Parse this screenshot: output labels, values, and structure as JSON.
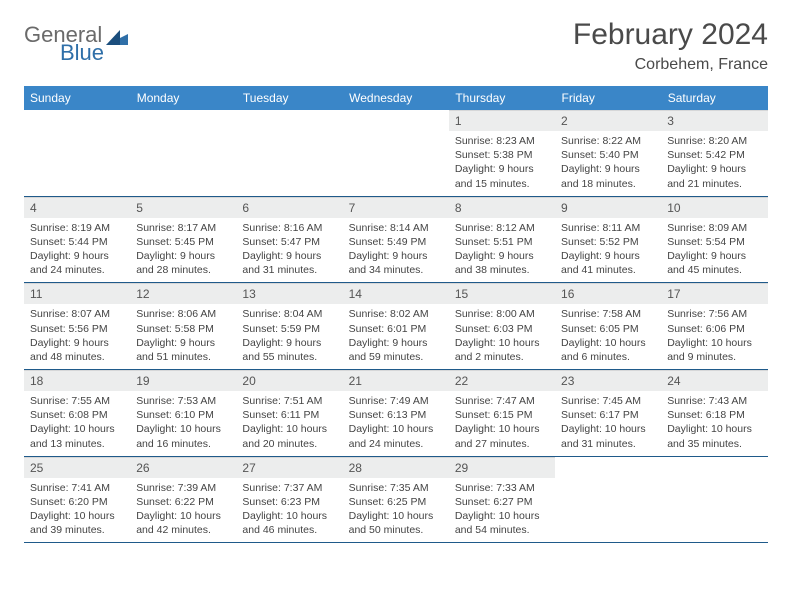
{
  "logo": {
    "general": "General",
    "blue": "Blue"
  },
  "title": "February 2024",
  "location": "Corbehem, France",
  "colors": {
    "header_bg": "#3a86c8",
    "header_text": "#ffffff",
    "daynum_bg": "#eceded",
    "row_border": "#1f5a8a",
    "logo_accent": "#2f6fa8",
    "logo_gray": "#6a6a6a"
  },
  "weekdays": [
    "Sunday",
    "Monday",
    "Tuesday",
    "Wednesday",
    "Thursday",
    "Friday",
    "Saturday"
  ],
  "weeks": [
    [
      {
        "n": "",
        "sr": "",
        "ss": "",
        "dl": ""
      },
      {
        "n": "",
        "sr": "",
        "ss": "",
        "dl": ""
      },
      {
        "n": "",
        "sr": "",
        "ss": "",
        "dl": ""
      },
      {
        "n": "",
        "sr": "",
        "ss": "",
        "dl": ""
      },
      {
        "n": "1",
        "sr": "Sunrise: 8:23 AM",
        "ss": "Sunset: 5:38 PM",
        "dl": "Daylight: 9 hours and 15 minutes."
      },
      {
        "n": "2",
        "sr": "Sunrise: 8:22 AM",
        "ss": "Sunset: 5:40 PM",
        "dl": "Daylight: 9 hours and 18 minutes."
      },
      {
        "n": "3",
        "sr": "Sunrise: 8:20 AM",
        "ss": "Sunset: 5:42 PM",
        "dl": "Daylight: 9 hours and 21 minutes."
      }
    ],
    [
      {
        "n": "4",
        "sr": "Sunrise: 8:19 AM",
        "ss": "Sunset: 5:44 PM",
        "dl": "Daylight: 9 hours and 24 minutes."
      },
      {
        "n": "5",
        "sr": "Sunrise: 8:17 AM",
        "ss": "Sunset: 5:45 PM",
        "dl": "Daylight: 9 hours and 28 minutes."
      },
      {
        "n": "6",
        "sr": "Sunrise: 8:16 AM",
        "ss": "Sunset: 5:47 PM",
        "dl": "Daylight: 9 hours and 31 minutes."
      },
      {
        "n": "7",
        "sr": "Sunrise: 8:14 AM",
        "ss": "Sunset: 5:49 PM",
        "dl": "Daylight: 9 hours and 34 minutes."
      },
      {
        "n": "8",
        "sr": "Sunrise: 8:12 AM",
        "ss": "Sunset: 5:51 PM",
        "dl": "Daylight: 9 hours and 38 minutes."
      },
      {
        "n": "9",
        "sr": "Sunrise: 8:11 AM",
        "ss": "Sunset: 5:52 PM",
        "dl": "Daylight: 9 hours and 41 minutes."
      },
      {
        "n": "10",
        "sr": "Sunrise: 8:09 AM",
        "ss": "Sunset: 5:54 PM",
        "dl": "Daylight: 9 hours and 45 minutes."
      }
    ],
    [
      {
        "n": "11",
        "sr": "Sunrise: 8:07 AM",
        "ss": "Sunset: 5:56 PM",
        "dl": "Daylight: 9 hours and 48 minutes."
      },
      {
        "n": "12",
        "sr": "Sunrise: 8:06 AM",
        "ss": "Sunset: 5:58 PM",
        "dl": "Daylight: 9 hours and 51 minutes."
      },
      {
        "n": "13",
        "sr": "Sunrise: 8:04 AM",
        "ss": "Sunset: 5:59 PM",
        "dl": "Daylight: 9 hours and 55 minutes."
      },
      {
        "n": "14",
        "sr": "Sunrise: 8:02 AM",
        "ss": "Sunset: 6:01 PM",
        "dl": "Daylight: 9 hours and 59 minutes."
      },
      {
        "n": "15",
        "sr": "Sunrise: 8:00 AM",
        "ss": "Sunset: 6:03 PM",
        "dl": "Daylight: 10 hours and 2 minutes."
      },
      {
        "n": "16",
        "sr": "Sunrise: 7:58 AM",
        "ss": "Sunset: 6:05 PM",
        "dl": "Daylight: 10 hours and 6 minutes."
      },
      {
        "n": "17",
        "sr": "Sunrise: 7:56 AM",
        "ss": "Sunset: 6:06 PM",
        "dl": "Daylight: 10 hours and 9 minutes."
      }
    ],
    [
      {
        "n": "18",
        "sr": "Sunrise: 7:55 AM",
        "ss": "Sunset: 6:08 PM",
        "dl": "Daylight: 10 hours and 13 minutes."
      },
      {
        "n": "19",
        "sr": "Sunrise: 7:53 AM",
        "ss": "Sunset: 6:10 PM",
        "dl": "Daylight: 10 hours and 16 minutes."
      },
      {
        "n": "20",
        "sr": "Sunrise: 7:51 AM",
        "ss": "Sunset: 6:11 PM",
        "dl": "Daylight: 10 hours and 20 minutes."
      },
      {
        "n": "21",
        "sr": "Sunrise: 7:49 AM",
        "ss": "Sunset: 6:13 PM",
        "dl": "Daylight: 10 hours and 24 minutes."
      },
      {
        "n": "22",
        "sr": "Sunrise: 7:47 AM",
        "ss": "Sunset: 6:15 PM",
        "dl": "Daylight: 10 hours and 27 minutes."
      },
      {
        "n": "23",
        "sr": "Sunrise: 7:45 AM",
        "ss": "Sunset: 6:17 PM",
        "dl": "Daylight: 10 hours and 31 minutes."
      },
      {
        "n": "24",
        "sr": "Sunrise: 7:43 AM",
        "ss": "Sunset: 6:18 PM",
        "dl": "Daylight: 10 hours and 35 minutes."
      }
    ],
    [
      {
        "n": "25",
        "sr": "Sunrise: 7:41 AM",
        "ss": "Sunset: 6:20 PM",
        "dl": "Daylight: 10 hours and 39 minutes."
      },
      {
        "n": "26",
        "sr": "Sunrise: 7:39 AM",
        "ss": "Sunset: 6:22 PM",
        "dl": "Daylight: 10 hours and 42 minutes."
      },
      {
        "n": "27",
        "sr": "Sunrise: 7:37 AM",
        "ss": "Sunset: 6:23 PM",
        "dl": "Daylight: 10 hours and 46 minutes."
      },
      {
        "n": "28",
        "sr": "Sunrise: 7:35 AM",
        "ss": "Sunset: 6:25 PM",
        "dl": "Daylight: 10 hours and 50 minutes."
      },
      {
        "n": "29",
        "sr": "Sunrise: 7:33 AM",
        "ss": "Sunset: 6:27 PM",
        "dl": "Daylight: 10 hours and 54 minutes."
      },
      {
        "n": "",
        "sr": "",
        "ss": "",
        "dl": ""
      },
      {
        "n": "",
        "sr": "",
        "ss": "",
        "dl": ""
      }
    ]
  ]
}
